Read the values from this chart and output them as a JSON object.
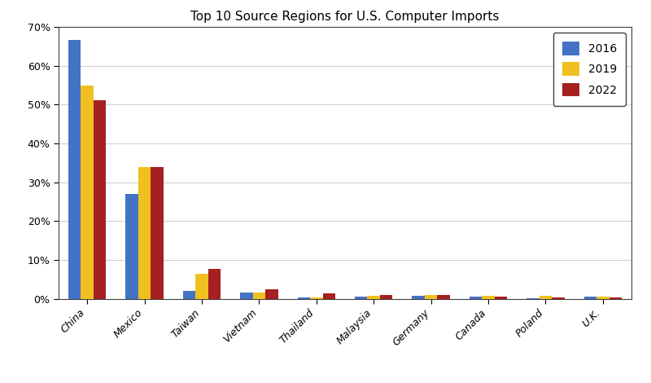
{
  "title": "Top 10 Source Regions for U.S. Computer Imports",
  "categories": [
    "China",
    "Mexico",
    "Taiwan",
    "Vietnam",
    "Thailand",
    "Malaysia",
    "Germany",
    "Canada",
    "Poland",
    "U.K."
  ],
  "years": [
    "2016",
    "2019",
    "2022"
  ],
  "values": {
    "2016": [
      0.667,
      0.27,
      0.02,
      0.015,
      0.003,
      0.005,
      0.007,
      0.005,
      0.002,
      0.005
    ],
    "2019": [
      0.548,
      0.338,
      0.065,
      0.015,
      0.003,
      0.007,
      0.01,
      0.007,
      0.008,
      0.005
    ],
    "2022": [
      0.512,
      0.338,
      0.077,
      0.025,
      0.013,
      0.01,
      0.009,
      0.005,
      0.004,
      0.003
    ]
  },
  "colors": {
    "2016": "#4472C4",
    "2019": "#F0C020",
    "2022": "#A52020"
  },
  "ylim": [
    0,
    0.7
  ],
  "yticks": [
    0.0,
    0.1,
    0.2,
    0.3,
    0.4,
    0.5,
    0.6,
    0.7
  ],
  "ytick_labels": [
    "0%",
    "10%",
    "20%",
    "30%",
    "40%",
    "50%",
    "60%",
    "70%"
  ],
  "legend_loc": "upper right",
  "bar_width": 0.22,
  "figsize": [
    8.0,
    4.7
  ],
  "dpi": 100,
  "title_fontsize": 11,
  "tick_fontsize": 9,
  "legend_fontsize": 10
}
